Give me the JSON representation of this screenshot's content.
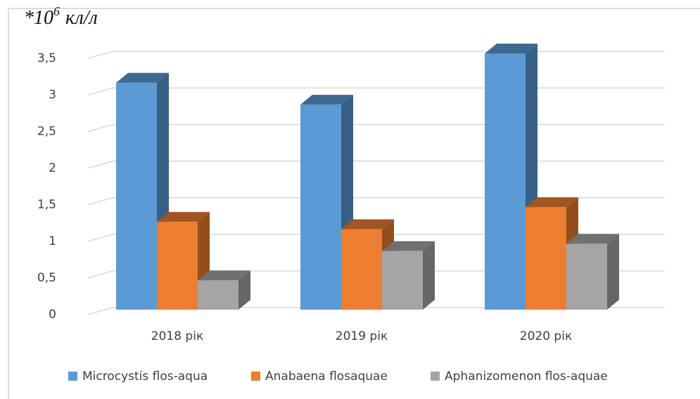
{
  "chart_data": {
    "type": "bar3d",
    "y_label": "*10",
    "y_label_exponent": "6",
    "y_label_unit": "кл/л",
    "categories": [
      "2018 рік",
      "2019 рік",
      "2020 рік"
    ],
    "series": [
      {
        "name": "Microcystis flos-aqua",
        "color": "#5b9bd5",
        "values": [
          3.1,
          2.8,
          3.5
        ]
      },
      {
        "name": "Anabaena flosaquae",
        "color": "#ed7d31",
        "values": [
          1.2,
          1.1,
          1.4
        ]
      },
      {
        "name": "Aphanizomenon flos-aquae",
        "color": "#a5a5a5",
        "values": [
          0.4,
          0.8,
          0.9
        ]
      }
    ],
    "ylim": [
      0,
      3.5
    ],
    "yticks": [
      0,
      {
        "value": 0.5,
        "label": "0,5"
      },
      1,
      {
        "value": 1.5,
        "label": "1,5"
      },
      2,
      {
        "value": 2.5,
        "label": "2,5"
      },
      3,
      {
        "value": 3.5,
        "label": "3,5"
      }
    ],
    "grid": true,
    "legend": "bottom"
  }
}
